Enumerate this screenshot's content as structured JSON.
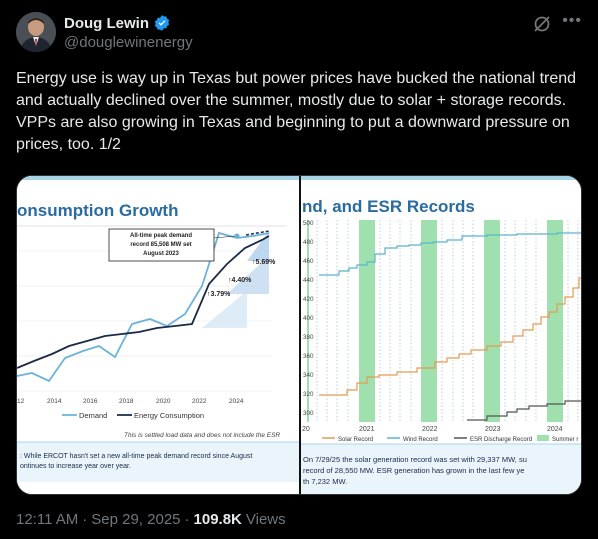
{
  "author": {
    "display_name": "Doug Lewin",
    "handle": "@douglewinenergy"
  },
  "tweet": {
    "text": "Energy use is way up in Texas but power prices have bucked the national trend and actually declined over the summer, mostly due to solar + storage records. VPPs are also growing in Texas and beginning to put a downward pressure on prices, too. 1/2"
  },
  "meta": {
    "time": "12:11 AM",
    "sep1": "·",
    "date": "Sep 29, 2025",
    "sep2": "·",
    "views": "109.8K",
    "views_label": "Views"
  },
  "colors": {
    "accent": "#1d9bf0",
    "demand": "#6cb3d9",
    "energy": "#1b2a47",
    "solar": "#e39b52",
    "wind": "#5bb3c9",
    "esr": "#555555",
    "summer": "#9fe0ae"
  },
  "chart_left": {
    "title": "onsumption Growth",
    "annotation_lines": [
      "All-time peak demand",
      "record 85,508 MW set",
      "August 2023"
    ],
    "pct_labels": [
      "↑3.79%",
      "↑4.40%",
      "↑5.69%"
    ],
    "x_ticks": [
      "12",
      "2014",
      "2016",
      "2018",
      "2020",
      "2022",
      "2024"
    ],
    "legend": [
      "Demand",
      "Energy Consumption"
    ],
    "footnote": "This is settled load data and does not include the ESR",
    "note_lines": [
      ": While ERCOT hasn't set a new all-time peak demand record since August",
      "ontinues to increase year over year."
    ]
  },
  "chart_right": {
    "title": "nd, and ESR Records",
    "y_ticks": [
      "500",
      "480",
      "460",
      "440",
      "420",
      "400",
      "380",
      "360",
      "340",
      "320",
      "300"
    ],
    "x_ticks": [
      "20",
      "2021",
      "2022",
      "2023",
      "2024"
    ],
    "legend": [
      "Solar Record",
      "Wind Record",
      "ESR Discharge Record",
      "Summer r"
    ],
    "note_lines": [
      "On 7/29/25 the solar generation record was set with 29,337 MW, su",
      "record of 28,550 MW. ESR generation has grown in the last few ye",
      "th 7,232 MW."
    ]
  }
}
